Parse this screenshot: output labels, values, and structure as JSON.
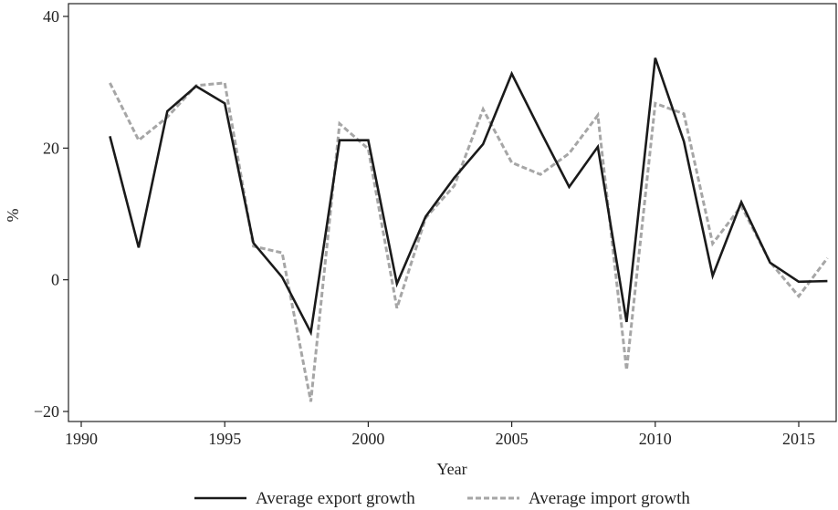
{
  "chart_data": {
    "type": "line",
    "title": "",
    "xlabel": "Year",
    "ylabel": "%",
    "xlim": [
      1989.9,
      1991.0
    ],
    "ylim": [
      -21.5,
      41
    ],
    "x_ticks": [
      1990,
      1995,
      2000,
      2005,
      2010,
      2015
    ],
    "y_ticks": [
      -20,
      0,
      20,
      40
    ],
    "y_tick_labels": [
      "−20",
      "0",
      "20",
      "40"
    ],
    "grid": false,
    "legend_position": "bottom",
    "x": [
      1991,
      1992,
      1993,
      1994,
      1995,
      1996,
      1997,
      1998,
      1999,
      2000,
      2001,
      2002,
      2003,
      2004,
      2005,
      2006,
      2007,
      2008,
      2009,
      2010,
      2011,
      2012,
      2013,
      2014,
      2015,
      2016
    ],
    "series": [
      {
        "name": "Average export growth",
        "color": "#1a1a1a",
        "style": "solid",
        "values": [
          21.8,
          4.9,
          25.6,
          29.4,
          26.8,
          5.6,
          0.4,
          -8.0,
          21.2,
          21.2,
          -0.6,
          9.6,
          15.5,
          20.6,
          31.3,
          22.6,
          14.1,
          20.2,
          -6.4,
          33.7,
          21.0,
          0.6,
          11.8,
          2.6,
          -0.3,
          -0.2
        ]
      },
      {
        "name": "Average import growth",
        "color": "#a6a6a6",
        "style": "dashed",
        "values": [
          29.9,
          21.2,
          24.7,
          29.5,
          29.9,
          5.1,
          4.1,
          -18.5,
          23.7,
          19.9,
          -4.3,
          9.4,
          14.3,
          25.9,
          17.8,
          16.0,
          19.2,
          25.0,
          -13.7,
          26.8,
          25.2,
          5.5,
          11.2,
          2.7,
          -2.5,
          3.3
        ]
      }
    ]
  }
}
